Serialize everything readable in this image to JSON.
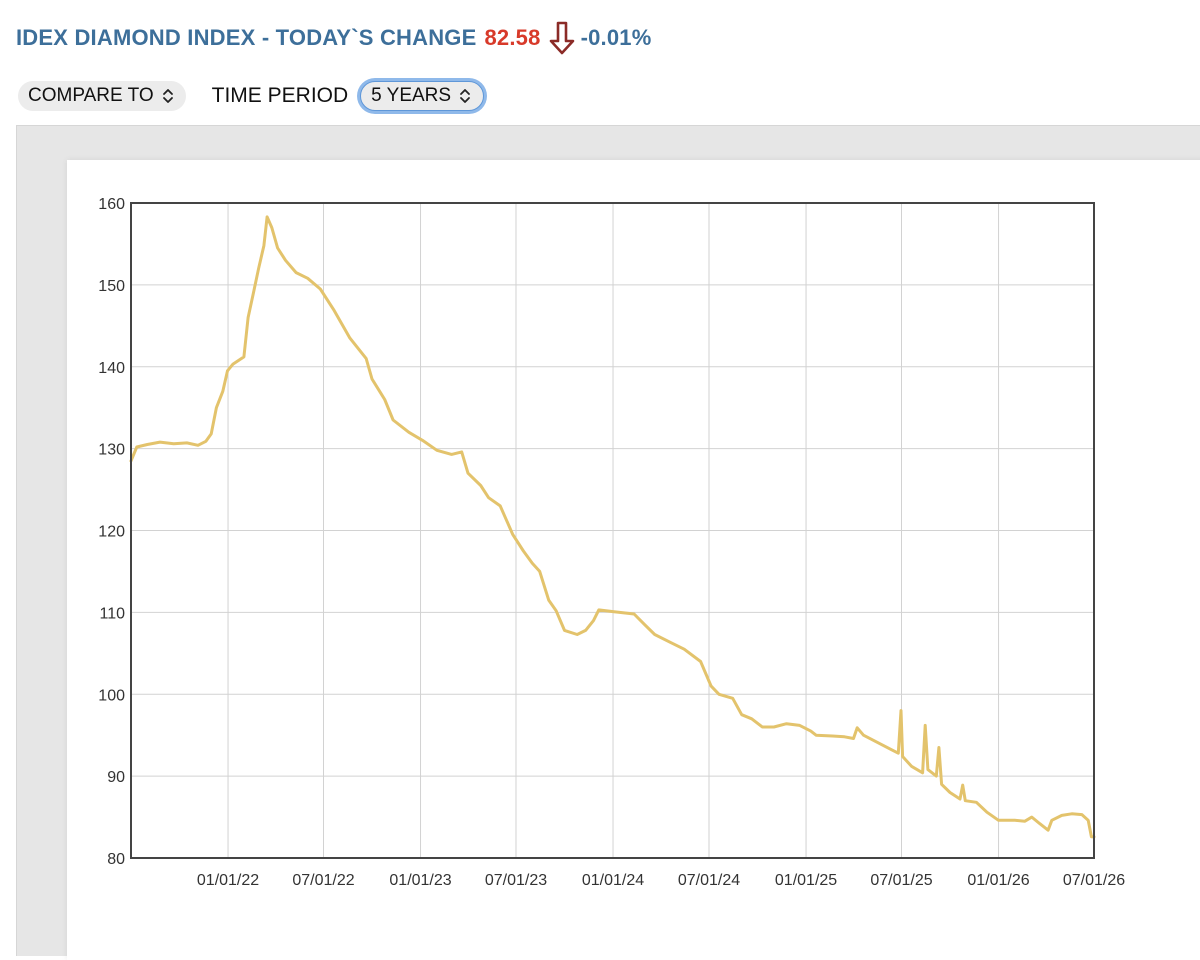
{
  "header": {
    "title": "IDEX DIAMOND INDEX - TODAY`S CHANGE",
    "value": "82.58",
    "change_pct": "-0.01%",
    "arrow_icon": "down-arrow-icon",
    "title_color": "#3d6f9a",
    "value_color": "#d83a2a",
    "arrow_color": "#8b2b27"
  },
  "controls": {
    "compare_to": "COMPARE TO",
    "time_period_label": "TIME PERIOD",
    "time_period_value": "5 YEARS"
  },
  "chart_data": {
    "type": "line",
    "line_color": "#e3c36c",
    "grid": true,
    "ylim": [
      80,
      160
    ],
    "yticks": [
      80,
      90,
      100,
      110,
      120,
      130,
      140,
      150,
      160
    ],
    "xlim": [
      "2021-07-01",
      "2026-07-01"
    ],
    "xticks": [
      "2022-01-01",
      "2022-07-01",
      "2023-01-01",
      "2023-07-01",
      "2024-01-01",
      "2024-07-01",
      "2025-01-01",
      "2025-07-01",
      "2026-01-01",
      "2026-07-01"
    ],
    "xtick_labels": [
      "01/01/22",
      "07/01/22",
      "01/01/23",
      "07/01/23",
      "01/01/24",
      "07/01/24",
      "01/01/25",
      "07/01/25",
      "01/01/26",
      "07/01/26"
    ],
    "series": [
      {
        "values": [
          [
            "2021-07-01",
            128.5
          ],
          [
            "2021-07-12",
            130.2
          ],
          [
            "2021-08-01",
            130.5
          ],
          [
            "2021-08-25",
            130.8
          ],
          [
            "2021-09-20",
            130.6
          ],
          [
            "2021-10-15",
            130.7
          ],
          [
            "2021-11-05",
            130.4
          ],
          [
            "2021-11-20",
            130.9
          ],
          [
            "2021-11-30",
            131.8
          ],
          [
            "2021-12-10",
            135.0
          ],
          [
            "2021-12-22",
            137.0
          ],
          [
            "2021-12-31",
            139.5
          ],
          [
            "2022-01-10",
            140.3
          ],
          [
            "2022-01-31",
            141.2
          ],
          [
            "2022-02-08",
            146.0
          ],
          [
            "2022-02-18",
            149.0
          ],
          [
            "2022-02-28",
            152.0
          ],
          [
            "2022-03-10",
            154.8
          ],
          [
            "2022-03-16",
            158.3
          ],
          [
            "2022-03-25",
            157.0
          ],
          [
            "2022-04-05",
            154.5
          ],
          [
            "2022-04-20",
            153.0
          ],
          [
            "2022-05-10",
            151.5
          ],
          [
            "2022-06-01",
            150.8
          ],
          [
            "2022-06-25",
            149.5
          ],
          [
            "2022-07-20",
            147.0
          ],
          [
            "2022-08-20",
            143.5
          ],
          [
            "2022-09-20",
            141.0
          ],
          [
            "2022-10-01",
            138.5
          ],
          [
            "2022-10-25",
            136.0
          ],
          [
            "2022-11-10",
            133.5
          ],
          [
            "2022-12-10",
            132.0
          ],
          [
            "2023-01-05",
            131.0
          ],
          [
            "2023-02-01",
            129.8
          ],
          [
            "2023-03-01",
            129.3
          ],
          [
            "2023-03-20",
            129.6
          ],
          [
            "2023-04-01",
            127.0
          ],
          [
            "2023-04-25",
            125.5
          ],
          [
            "2023-05-10",
            124.0
          ],
          [
            "2023-06-01",
            123.0
          ],
          [
            "2023-06-25",
            119.5
          ],
          [
            "2023-07-15",
            117.5
          ],
          [
            "2023-08-01",
            116.0
          ],
          [
            "2023-08-15",
            115.0
          ],
          [
            "2023-09-01",
            111.5
          ],
          [
            "2023-09-15",
            110.2
          ],
          [
            "2023-10-01",
            107.8
          ],
          [
            "2023-10-25",
            107.3
          ],
          [
            "2023-11-10",
            107.8
          ],
          [
            "2023-11-25",
            109.0
          ],
          [
            "2023-12-05",
            110.3
          ],
          [
            "2024-01-01",
            110.1
          ],
          [
            "2024-02-10",
            109.8
          ],
          [
            "2024-03-01",
            108.5
          ],
          [
            "2024-03-20",
            107.3
          ],
          [
            "2024-04-20",
            106.3
          ],
          [
            "2024-05-15",
            105.5
          ],
          [
            "2024-06-15",
            104.0
          ],
          [
            "2024-07-05",
            101.0
          ],
          [
            "2024-07-20",
            100.0
          ],
          [
            "2024-08-15",
            99.5
          ],
          [
            "2024-09-01",
            97.5
          ],
          [
            "2024-09-20",
            97.0
          ],
          [
            "2024-10-10",
            96.0
          ],
          [
            "2024-11-01",
            96.0
          ],
          [
            "2024-11-25",
            96.4
          ],
          [
            "2024-12-20",
            96.2
          ],
          [
            "2025-01-10",
            95.5
          ],
          [
            "2025-01-20",
            95.0
          ],
          [
            "2025-02-20",
            94.9
          ],
          [
            "2025-03-15",
            94.8
          ],
          [
            "2025-04-01",
            94.6
          ],
          [
            "2025-04-08",
            95.9
          ],
          [
            "2025-04-20",
            95.0
          ],
          [
            "2025-05-20",
            94.0
          ],
          [
            "2025-06-25",
            92.8
          ],
          [
            "2025-06-30",
            98.0
          ],
          [
            "2025-07-03",
            92.4
          ],
          [
            "2025-07-20",
            91.2
          ],
          [
            "2025-08-10",
            90.4
          ],
          [
            "2025-08-15",
            96.2
          ],
          [
            "2025-08-20",
            90.8
          ],
          [
            "2025-09-05",
            90.0
          ],
          [
            "2025-09-10",
            93.5
          ],
          [
            "2025-09-15",
            89.0
          ],
          [
            "2025-10-01",
            88.0
          ],
          [
            "2025-10-20",
            87.2
          ],
          [
            "2025-10-25",
            88.9
          ],
          [
            "2025-10-30",
            87.0
          ],
          [
            "2025-11-20",
            86.8
          ],
          [
            "2025-12-10",
            85.6
          ],
          [
            "2026-01-01",
            84.6
          ],
          [
            "2026-02-01",
            84.6
          ],
          [
            "2026-02-20",
            84.5
          ],
          [
            "2026-03-05",
            85.0
          ],
          [
            "2026-03-20",
            84.2
          ],
          [
            "2026-04-05",
            83.4
          ],
          [
            "2026-04-12",
            84.6
          ],
          [
            "2026-05-01",
            85.2
          ],
          [
            "2026-05-20",
            85.4
          ],
          [
            "2026-06-08",
            85.3
          ],
          [
            "2026-06-20",
            84.6
          ],
          [
            "2026-06-26",
            82.6
          ],
          [
            "2026-07-01",
            82.58
          ]
        ]
      }
    ]
  }
}
